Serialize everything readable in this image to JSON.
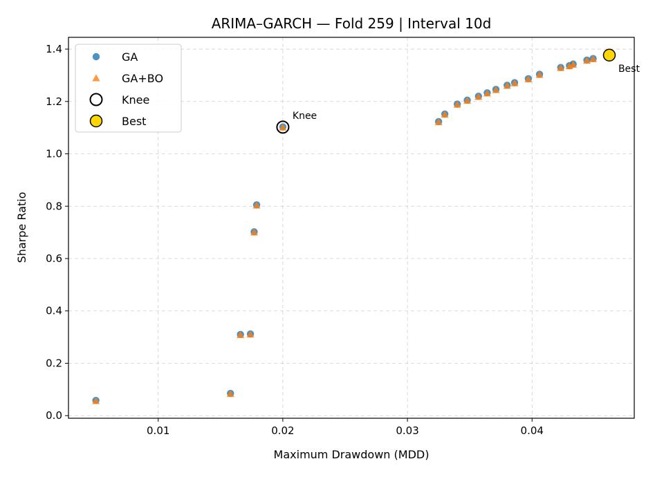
{
  "chart_data": {
    "type": "scatter",
    "title": "ARIMA–GARCH — Fold 259 | Interval 10d",
    "xlabel": "Maximum Drawdown (MDD)",
    "ylabel": "Sharpe Ratio",
    "xlim": [
      0.0028,
      0.0482
    ],
    "ylim": [
      -0.01,
      1.445
    ],
    "x_ticks": [
      0.01,
      0.02,
      0.03,
      0.04
    ],
    "x_tick_labels": [
      "0.01",
      "0.02",
      "0.03",
      "0.04"
    ],
    "y_ticks": [
      0.0,
      0.2,
      0.4,
      0.6,
      0.8,
      1.0,
      1.2,
      1.4
    ],
    "y_tick_labels": [
      "0.0",
      "0.2",
      "0.4",
      "0.6",
      "0.8",
      "1.0",
      "1.2",
      "1.4"
    ],
    "grid": true,
    "legend_position": "top-left",
    "series": [
      {
        "name": "GA",
        "marker": "circle",
        "color": "#1f77b4",
        "points": [
          [
            0.005,
            0.058
          ],
          [
            0.0158,
            0.085
          ],
          [
            0.0166,
            0.31
          ],
          [
            0.0174,
            0.312
          ],
          [
            0.0177,
            0.702
          ],
          [
            0.0179,
            0.805
          ],
          [
            0.02,
            1.103
          ],
          [
            0.0325,
            1.123
          ],
          [
            0.033,
            1.152
          ],
          [
            0.034,
            1.19
          ],
          [
            0.0348,
            1.205
          ],
          [
            0.0357,
            1.22
          ],
          [
            0.0364,
            1.233
          ],
          [
            0.0371,
            1.246
          ],
          [
            0.038,
            1.262
          ],
          [
            0.0386,
            1.272
          ],
          [
            0.0397,
            1.287
          ],
          [
            0.0406,
            1.304
          ],
          [
            0.0423,
            1.33
          ],
          [
            0.043,
            1.337
          ],
          [
            0.0433,
            1.343
          ],
          [
            0.0444,
            1.358
          ],
          [
            0.0449,
            1.364
          ]
        ]
      },
      {
        "name": "GA+BO",
        "marker": "triangle",
        "color": "#ff7f0e",
        "points": [
          [
            0.005,
            0.056
          ],
          [
            0.0158,
            0.083
          ],
          [
            0.0166,
            0.308
          ],
          [
            0.0174,
            0.31
          ],
          [
            0.0177,
            0.7
          ],
          [
            0.0179,
            0.803
          ],
          [
            0.02,
            1.101
          ],
          [
            0.0325,
            1.121
          ],
          [
            0.033,
            1.15
          ],
          [
            0.034,
            1.188
          ],
          [
            0.0348,
            1.203
          ],
          [
            0.0357,
            1.218
          ],
          [
            0.0364,
            1.231
          ],
          [
            0.0371,
            1.244
          ],
          [
            0.038,
            1.26
          ],
          [
            0.0386,
            1.27
          ],
          [
            0.0397,
            1.285
          ],
          [
            0.0406,
            1.302
          ],
          [
            0.0423,
            1.328
          ],
          [
            0.043,
            1.335
          ],
          [
            0.0433,
            1.341
          ],
          [
            0.0444,
            1.356
          ],
          [
            0.0449,
            1.362
          ]
        ]
      }
    ],
    "highlights": [
      {
        "name": "Knee",
        "x": 0.02,
        "y": 1.102,
        "face": "none",
        "edge": "#000000",
        "label": "Knee",
        "label_placement": "above-right"
      },
      {
        "name": "Best",
        "x": 0.0462,
        "y": 1.377,
        "face": "#ffd700",
        "edge": "#000000",
        "label": "Best",
        "label_placement": "below-right"
      }
    ],
    "legend": [
      {
        "label": "GA",
        "marker": "circle",
        "color": "#1f77b4"
      },
      {
        "label": "GA+BO",
        "marker": "triangle",
        "color": "#ff7f0e"
      },
      {
        "label": "Knee",
        "marker": "ring",
        "color": "#000000"
      },
      {
        "label": "Best",
        "marker": "filled-ring",
        "color": "#ffd700"
      }
    ]
  }
}
